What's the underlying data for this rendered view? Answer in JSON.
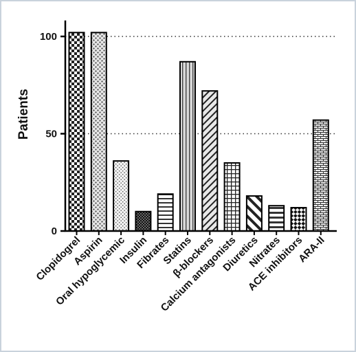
{
  "chart_data": {
    "type": "bar",
    "title": "",
    "xlabel": "",
    "ylabel": "Patients",
    "ylim": [
      0,
      110
    ],
    "yticks": [
      0,
      50,
      100
    ],
    "gridlines": [
      50,
      100
    ],
    "grid": "dotted horizontal at 50 and 100",
    "categories": [
      "Clopidogrel",
      "Aspirin",
      "Oral hypoglycemic",
      "Insulin",
      "Fibrates",
      "Statins",
      "β-blockers",
      "Calcium antagonists",
      "Diuretics",
      "Nitrates",
      "ACE inhibitors",
      "ARA-II"
    ],
    "values": [
      102,
      102,
      36,
      10,
      19,
      87,
      72,
      35,
      18,
      13,
      12,
      57
    ],
    "patterns": [
      "checker",
      "dots",
      "fine-dots",
      "dark-checker",
      "hlines",
      "vlines",
      "diag-up",
      "grid",
      "diag-thick",
      "hlines-thick",
      "diamond-check",
      "bricks"
    ],
    "bar_fill": "#ffffff",
    "bar_stroke": "#000000",
    "series": [
      {
        "values": [
          102,
          102,
          36,
          10,
          19,
          87,
          72,
          35,
          18,
          13,
          12,
          57
        ]
      }
    ]
  }
}
